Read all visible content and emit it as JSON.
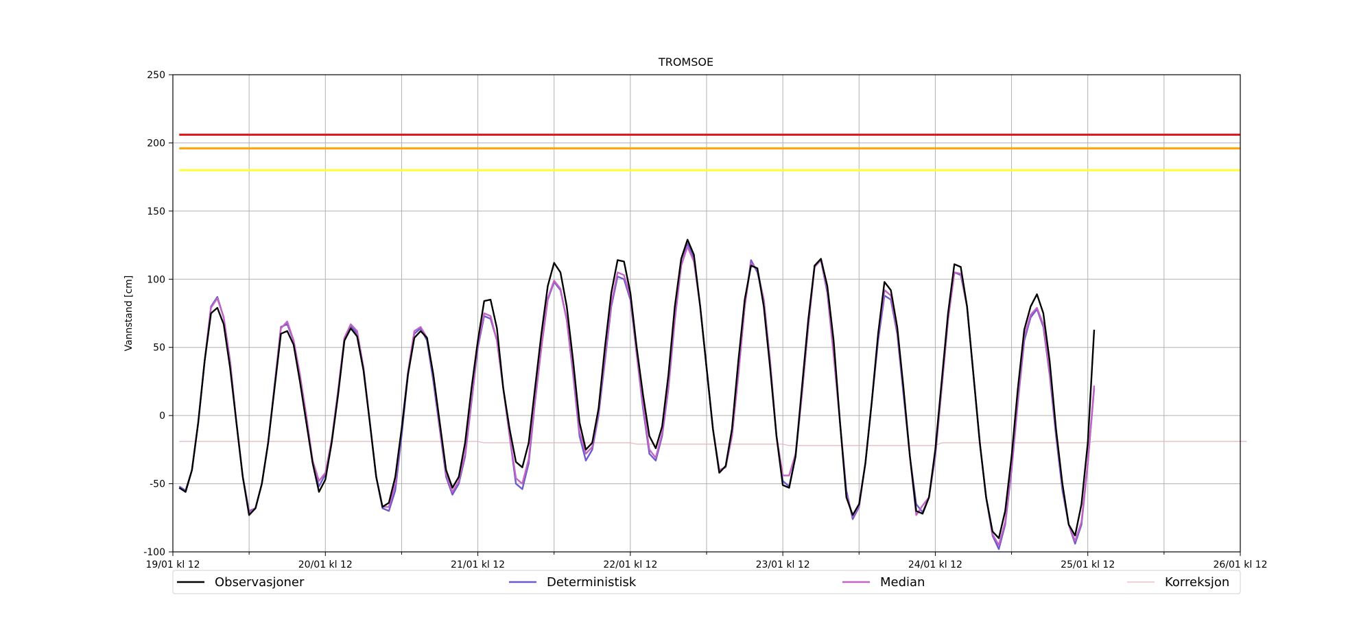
{
  "chart_data": {
    "type": "line",
    "title": "TROMSOE",
    "xlabel": "",
    "ylabel": "Vannstand [cm]",
    "ylim": [
      -100,
      250
    ],
    "yticks": [
      -100,
      -50,
      0,
      50,
      100,
      150,
      200,
      250
    ],
    "xlim_hours": [
      0,
      168
    ],
    "x_unit": "hours from 19/01 kl 12",
    "x_step_hours": 1,
    "xticks": [
      {
        "hour": 0,
        "label": "19/01 kl 12"
      },
      {
        "hour": 24,
        "label": "20/01 kl 12"
      },
      {
        "hour": 48,
        "label": "21/01 kl 12"
      },
      {
        "hour": 72,
        "label": "22/01 kl 12"
      },
      {
        "hour": 96,
        "label": "23/01 kl 12"
      },
      {
        "hour": 120,
        "label": "24/01 kl 12"
      },
      {
        "hour": 144,
        "label": "25/01 kl 12"
      },
      {
        "hour": 168,
        "label": "26/01 kl 12"
      }
    ],
    "minor_gridlines_hours": [
      12,
      36,
      60,
      84,
      108,
      132,
      156
    ],
    "grid": true,
    "legend_position": "bottom",
    "thresholds": [
      {
        "value": 206,
        "color": "#e8151b"
      },
      {
        "value": 196,
        "color": "#ffa500"
      },
      {
        "value": 180,
        "color": "#ffff33"
      }
    ],
    "series": [
      {
        "name": "Observasjoner",
        "color": "#000000",
        "values": [
          -53,
          -56,
          -40,
          -5,
          40,
          75,
          79,
          67,
          35,
          -5,
          -45,
          -73,
          -68,
          -50,
          -20,
          20,
          60,
          62,
          52,
          25,
          -5,
          -35,
          -56,
          -47,
          -20,
          15,
          55,
          64,
          58,
          33,
          -5,
          -45,
          -67,
          -64,
          -45,
          -10,
          30,
          57,
          62,
          57,
          30,
          -5,
          -40,
          -53,
          -45,
          -20,
          20,
          55,
          84,
          85,
          64,
          20,
          -10,
          -34,
          -38,
          -20,
          20,
          60,
          95,
          112,
          105,
          80,
          40,
          -5,
          -25,
          -20,
          5,
          50,
          90,
          114,
          113,
          90,
          50,
          15,
          -15,
          -24,
          -8,
          30,
          80,
          115,
          129,
          118,
          80,
          35,
          -10,
          -42,
          -37,
          -10,
          40,
          85,
          110,
          108,
          80,
          35,
          -15,
          -51,
          -53,
          -30,
          20,
          70,
          110,
          115,
          95,
          55,
          -5,
          -60,
          -73,
          -65,
          -35,
          10,
          60,
          98,
          92,
          65,
          20,
          -30,
          -70,
          -72,
          -60,
          -25,
          25,
          75,
          111,
          109,
          80,
          30,
          -20,
          -60,
          -85,
          -90,
          -70,
          -30,
          20,
          63,
          80,
          89,
          75,
          40,
          -10,
          -50,
          -80,
          -88,
          -65,
          -20,
          63
        ]
      },
      {
        "name": "Deterministisk",
        "color": "#6a5acd",
        "values": [
          -52,
          -55,
          -40,
          -5,
          40,
          80,
          87,
          72,
          40,
          -5,
          -45,
          -70,
          -68,
          -50,
          -20,
          22,
          65,
          67,
          55,
          30,
          -2,
          -35,
          -52,
          -43,
          -18,
          18,
          57,
          66,
          60,
          35,
          -5,
          -45,
          -68,
          -70,
          -55,
          -15,
          30,
          60,
          64,
          55,
          25,
          -10,
          -45,
          -58,
          -50,
          -30,
          10,
          50,
          73,
          71,
          55,
          20,
          -15,
          -50,
          -54,
          -35,
          10,
          50,
          85,
          98,
          92,
          70,
          30,
          -15,
          -33,
          -25,
          0,
          40,
          80,
          102,
          100,
          85,
          45,
          5,
          -28,
          -33,
          -15,
          20,
          70,
          110,
          126,
          115,
          80,
          35,
          -10,
          -40,
          -38,
          -15,
          30,
          80,
          114,
          105,
          85,
          40,
          -15,
          -48,
          -52,
          -30,
          15,
          65,
          110,
          114,
          90,
          45,
          -5,
          -55,
          -76,
          -67,
          -35,
          10,
          55,
          88,
          85,
          60,
          15,
          -30,
          -65,
          -71,
          -60,
          -30,
          20,
          70,
          105,
          103,
          80,
          30,
          -20,
          -60,
          -88,
          -98,
          -80,
          -40,
          10,
          55,
          72,
          78,
          65,
          30,
          -15,
          -55,
          -80,
          -94,
          -80,
          -35,
          20
        ]
      },
      {
        "name": "Median",
        "color": "#c364c5",
        "values": [
          -53,
          -56,
          -40,
          -5,
          40,
          79,
          86,
          72,
          40,
          -5,
          -45,
          -71,
          -68,
          -50,
          -20,
          22,
          64,
          69,
          55,
          30,
          0,
          -33,
          -48,
          -42,
          -18,
          18,
          57,
          67,
          62,
          35,
          -5,
          -45,
          -67,
          -67,
          -50,
          -10,
          32,
          62,
          65,
          57,
          28,
          -8,
          -43,
          -56,
          -48,
          -28,
          12,
          52,
          75,
          73,
          55,
          20,
          -15,
          -46,
          -50,
          -32,
          12,
          50,
          86,
          99,
          93,
          70,
          32,
          -12,
          -28,
          -23,
          2,
          43,
          82,
          105,
          103,
          87,
          45,
          8,
          -25,
          -31,
          -13,
          22,
          72,
          110,
          124,
          113,
          80,
          35,
          -10,
          -40,
          -38,
          -15,
          30,
          80,
          112,
          107,
          85,
          40,
          -15,
          -44,
          -44,
          -28,
          15,
          65,
          109,
          114,
          92,
          45,
          -5,
          -58,
          -74,
          -66,
          -35,
          10,
          58,
          92,
          88,
          62,
          18,
          -30,
          -73,
          -66,
          -60,
          -28,
          20,
          70,
          105,
          104,
          80,
          30,
          -20,
          -60,
          -87,
          -95,
          -78,
          -38,
          12,
          58,
          74,
          79,
          67,
          32,
          -12,
          -52,
          -80,
          -92,
          -78,
          -35,
          22
        ]
      },
      {
        "name": "Korreksjon",
        "color": "#e8b4b8",
        "values": [
          -19,
          -19,
          -19,
          -19,
          -19,
          -19,
          -19,
          -19,
          -19,
          -19,
          -19,
          -19,
          -19,
          -19,
          -19,
          -19,
          -19,
          -19,
          -19,
          -19,
          -19,
          -19,
          -19,
          -19,
          -19,
          -19,
          -19,
          -19,
          -19,
          -19,
          -19,
          -19,
          -19,
          -19,
          -19,
          -19,
          -19,
          -19,
          -19,
          -19,
          -19,
          -19,
          -19,
          -19,
          -19,
          -19,
          -19,
          -19,
          -20,
          -20,
          -20,
          -20,
          -20,
          -20,
          -20,
          -20,
          -20,
          -20,
          -20,
          -20,
          -20,
          -20,
          -20,
          -20,
          -20,
          -20,
          -20,
          -20,
          -20,
          -20,
          -20,
          -20,
          -21,
          -21,
          -21,
          -21,
          -21,
          -21,
          -21,
          -21,
          -21,
          -21,
          -21,
          -21,
          -21,
          -21,
          -21,
          -21,
          -21,
          -21,
          -21,
          -21,
          -21,
          -21,
          -21,
          -21,
          -22,
          -22,
          -22,
          -22,
          -22,
          -22,
          -22,
          -22,
          -22,
          -22,
          -22,
          -22,
          -22,
          -22,
          -22,
          -22,
          -22,
          -22,
          -22,
          -22,
          -22,
          -22,
          -22,
          -22,
          -20,
          -20,
          -20,
          -20,
          -20,
          -20,
          -20,
          -20,
          -20,
          -20,
          -20,
          -20,
          -20,
          -20,
          -20,
          -20,
          -20,
          -20,
          -20,
          -20,
          -20,
          -20,
          -20,
          -20,
          -19,
          -19,
          -19,
          -19,
          -19,
          -19,
          -19,
          -19,
          -19,
          -19,
          -19,
          -19,
          -19,
          -19,
          -19,
          -19,
          -19,
          -19,
          -19,
          -19,
          -19,
          -19,
          -19,
          -19,
          -19
        ]
      }
    ]
  }
}
